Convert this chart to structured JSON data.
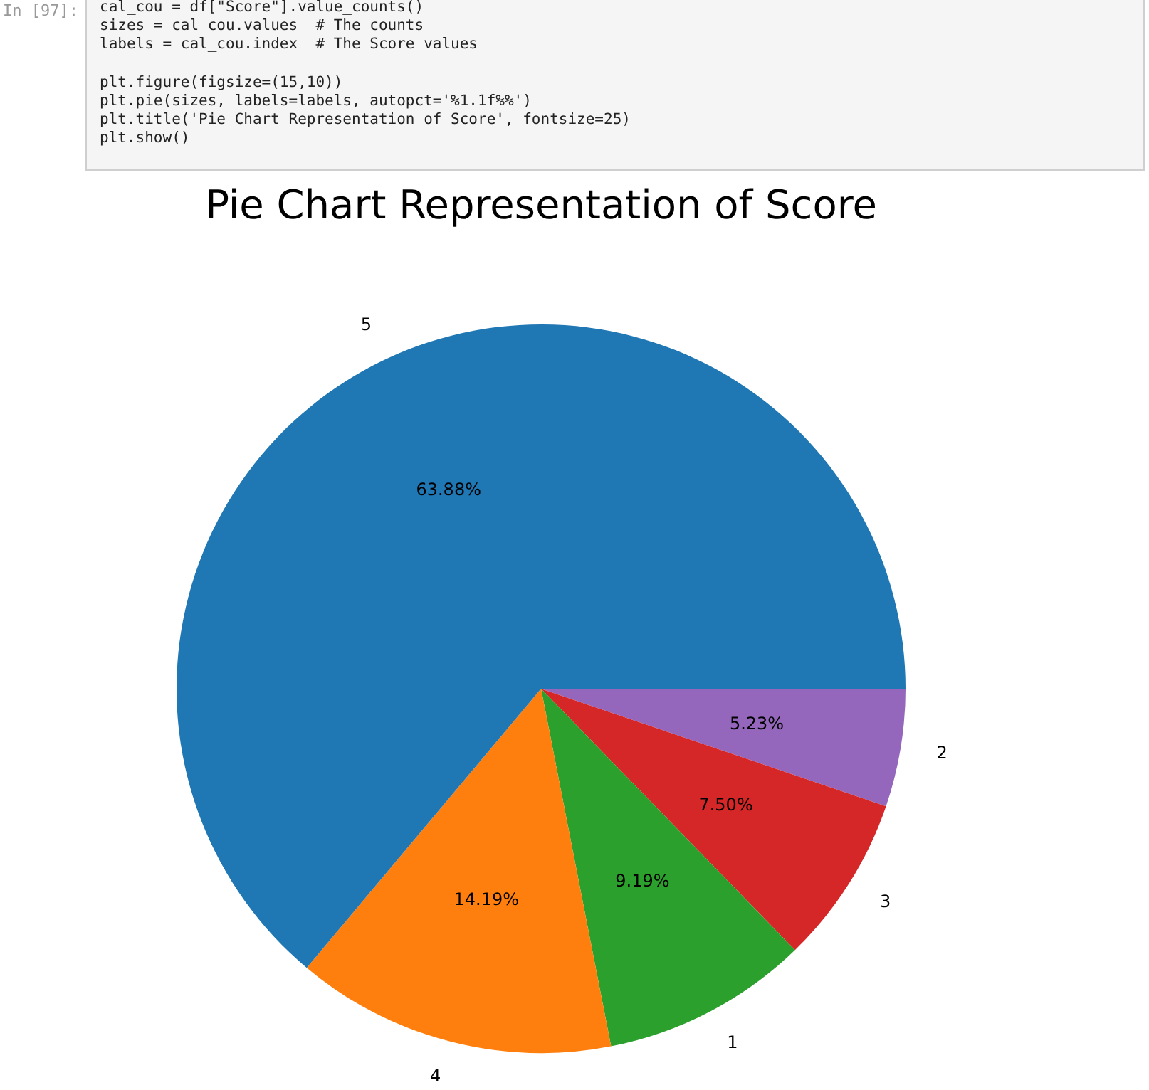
{
  "chart_data": {
    "type": "pie",
    "title": "Pie Chart Representation of Score",
    "categories": [
      "5",
      "4",
      "1",
      "3",
      "2"
    ],
    "values": [
      63.88,
      14.19,
      9.19,
      7.5,
      5.23
    ],
    "value_labels": [
      "63.88%",
      "14.19%",
      "9.19%",
      "7.50%",
      "5.23%"
    ],
    "colors": [
      "#1f77b4",
      "#ff7f0e",
      "#2ca02c",
      "#d62728",
      "#9467bd"
    ],
    "annotations": [
      "In [97]:",
      "cal_cou = df[\"Score\"].value_counts()",
      "sizes = cal_cou.values  # The counts",
      "labels = cal_cou.index  # The Score values",
      "plt.figure(figsize=(15,10))",
      "plt.pie(sizes, labels=labels, autopct='%1.1f%%')",
      "plt.title('Pie Chart Representation of Score', fontsize=25)",
      "plt.show()"
    ]
  }
}
